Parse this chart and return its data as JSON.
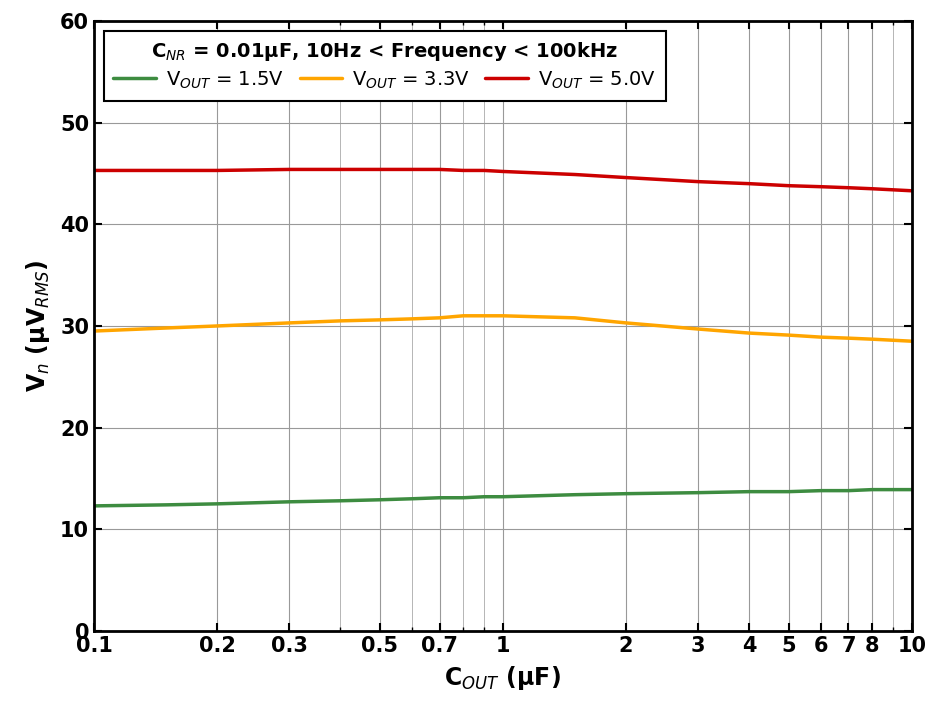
{
  "xlabel": "C$_{OUT}$ (μF)",
  "ylabel": "V$_n$ (μV$_{RMS}$)",
  "xlim": [
    0.1,
    10
  ],
  "ylim": [
    0,
    60
  ],
  "yticks": [
    0,
    10,
    20,
    30,
    40,
    50,
    60
  ],
  "xtick_vals": [
    0.1,
    0.2,
    0.3,
    0.5,
    0.7,
    1.0,
    2.0,
    3.0,
    4.0,
    5.0,
    6.0,
    7.0,
    8.0,
    10.0
  ],
  "xtick_labels": [
    "0.1",
    "0.2",
    "0.3",
    "0.5",
    "0.7",
    "1",
    "2",
    "3",
    "4",
    "5",
    "6",
    "7",
    "8",
    "10"
  ],
  "legend_title": "C$_{NR}$ = 0.01μF, 10Hz < Frequency < 100kHz",
  "curves": [
    {
      "label": "V$_{OUT}$ = 1.5V",
      "color": "#3d8c40",
      "x": [
        0.1,
        0.15,
        0.2,
        0.3,
        0.4,
        0.5,
        0.6,
        0.7,
        0.8,
        0.9,
        1.0,
        1.5,
        2.0,
        3.0,
        4.0,
        5.0,
        6.0,
        7.0,
        8.0,
        10.0
      ],
      "y": [
        12.3,
        12.4,
        12.5,
        12.7,
        12.8,
        12.9,
        13.0,
        13.1,
        13.1,
        13.2,
        13.2,
        13.4,
        13.5,
        13.6,
        13.7,
        13.7,
        13.8,
        13.8,
        13.9,
        13.9
      ]
    },
    {
      "label": "V$_{OUT}$ = 3.3V",
      "color": "#FFA500",
      "x": [
        0.1,
        0.15,
        0.2,
        0.3,
        0.4,
        0.5,
        0.6,
        0.7,
        0.8,
        0.9,
        1.0,
        1.5,
        2.0,
        3.0,
        4.0,
        5.0,
        6.0,
        7.0,
        8.0,
        10.0
      ],
      "y": [
        29.5,
        29.8,
        30.0,
        30.3,
        30.5,
        30.6,
        30.7,
        30.8,
        31.0,
        31.0,
        31.0,
        30.8,
        30.3,
        29.7,
        29.3,
        29.1,
        28.9,
        28.8,
        28.7,
        28.5
      ]
    },
    {
      "label": "V$_{OUT}$ = 5.0V",
      "color": "#CC0000",
      "x": [
        0.1,
        0.15,
        0.2,
        0.3,
        0.4,
        0.5,
        0.6,
        0.7,
        0.8,
        0.9,
        1.0,
        1.5,
        2.0,
        3.0,
        4.0,
        5.0,
        6.0,
        7.0,
        8.0,
        10.0
      ],
      "y": [
        45.3,
        45.3,
        45.3,
        45.4,
        45.4,
        45.4,
        45.4,
        45.4,
        45.3,
        45.3,
        45.2,
        44.9,
        44.6,
        44.2,
        44.0,
        43.8,
        43.7,
        43.6,
        43.5,
        43.3
      ]
    }
  ],
  "background_color": "#ffffff",
  "grid_color": "#999999",
  "line_width": 2.5,
  "tick_fontsize": 15,
  "label_fontsize": 17,
  "legend_fontsize": 14
}
